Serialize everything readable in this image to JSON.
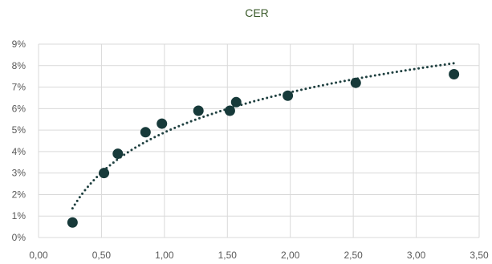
{
  "chart_data": {
    "type": "scatter",
    "title": "CER",
    "xlabel": "",
    "ylabel": "",
    "xlim": [
      0,
      3.5
    ],
    "ylim": [
      0,
      0.09
    ],
    "x_ticks": [
      "0,00",
      "0,50",
      "1,00",
      "1,50",
      "2,00",
      "2,50",
      "3,00",
      "3,50"
    ],
    "y_ticks": [
      "0%",
      "1%",
      "2%",
      "3%",
      "4%",
      "5%",
      "6%",
      "7%",
      "8%",
      "9%"
    ],
    "grid": true,
    "legend": "none",
    "points": [
      {
        "x": 0.27,
        "y": 0.007
      },
      {
        "x": 0.52,
        "y": 0.03
      },
      {
        "x": 0.63,
        "y": 0.039
      },
      {
        "x": 0.85,
        "y": 0.049
      },
      {
        "x": 0.98,
        "y": 0.053
      },
      {
        "x": 1.27,
        "y": 0.059
      },
      {
        "x": 1.52,
        "y": 0.059
      },
      {
        "x": 1.57,
        "y": 0.063
      },
      {
        "x": 1.98,
        "y": 0.066
      },
      {
        "x": 2.52,
        "y": 0.072
      },
      {
        "x": 3.3,
        "y": 0.076
      }
    ],
    "trendline": {
      "type": "logarithmic",
      "x_range": [
        0.27,
        3.3
      ],
      "style": "dotted"
    },
    "colors": {
      "title": "#3a5a2a",
      "marker": "#173a3a",
      "trend": "#1f4040",
      "grid": "#d9d9d9",
      "tick": "#595959"
    }
  }
}
